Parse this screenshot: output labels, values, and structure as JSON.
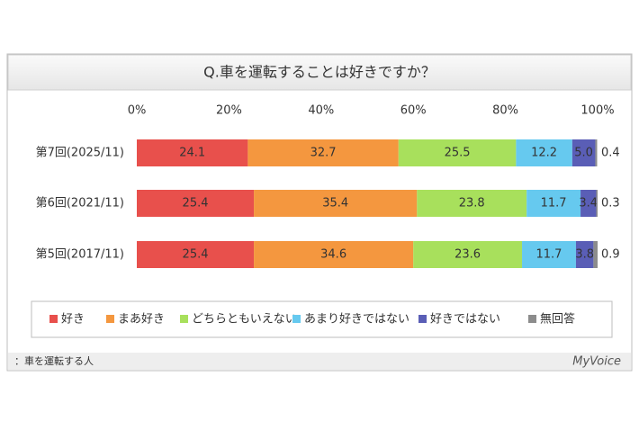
{
  "chart_data": {
    "type": "stacked-bar-horizontal",
    "title": "Q.車を運転することは好きですか？",
    "categories": [
      "第7回(2025/11)",
      "第6回(2021/11)",
      "第5回(2017/11)"
    ],
    "xlim": [
      0,
      100
    ],
    "xticks": [
      {
        "value": 0,
        "label": "0%"
      },
      {
        "value": 20,
        "label": "20%"
      },
      {
        "value": 40,
        "label": "40%"
      },
      {
        "value": 60,
        "label": "60%"
      },
      {
        "value": 80,
        "label": "80%"
      },
      {
        "value": 100,
        "label": "100%"
      }
    ],
    "series": [
      {
        "name": "好き",
        "color": "#e8504c",
        "values": [
          24.1,
          25.4,
          25.4
        ],
        "value_labels": [
          "24.1",
          "25.4",
          "25.4"
        ]
      },
      {
        "name": "まあ好き",
        "color": "#f4973f",
        "values": [
          32.7,
          35.4,
          34.6
        ],
        "value_labels": [
          "32.7",
          "35.4",
          "34.6"
        ]
      },
      {
        "name": "どちらともいえない",
        "color": "#a8e05c",
        "values": [
          25.5,
          23.8,
          23.6
        ],
        "value_labels": [
          "25.5",
          "23.8",
          "23.6"
        ]
      },
      {
        "name": "あまり好きではない",
        "color": "#66c9ef",
        "values": [
          12.2,
          11.7,
          11.7
        ],
        "value_labels": [
          "12.2",
          "11.7",
          "11.7"
        ]
      },
      {
        "name": "好きではない",
        "color": "#5a5eb6",
        "values": [
          5.0,
          3.4,
          3.8
        ],
        "value_labels": [
          "5.0",
          "3.4",
          "3.8"
        ]
      },
      {
        "name": "無回答",
        "color": "#8c8c8c",
        "values": [
          0.4,
          0.3,
          0.9
        ],
        "value_labels": [
          "0.4",
          "0.3",
          "0.9"
        ]
      }
    ],
    "note": "：車を運転する人",
    "source": "MyVoice"
  }
}
